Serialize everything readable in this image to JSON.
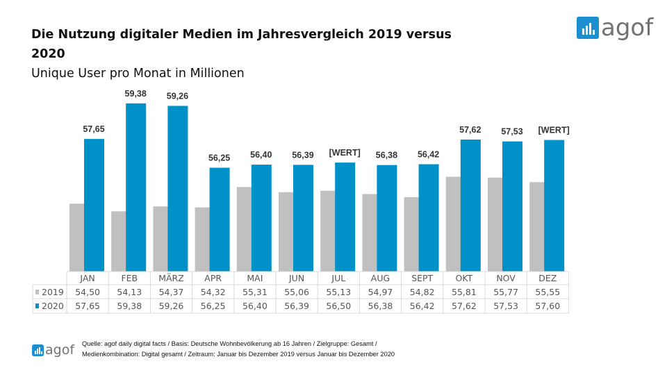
{
  "title": {
    "line1": "Die Nutzung digitaler Medien im Jahresvergleich 2019 versus 2020",
    "line2": "Unique User pro Monat in Millionen"
  },
  "logo": {
    "text": "agof",
    "color": "#1b8fd0"
  },
  "source": {
    "line1": "Quelle: agof daily digital facts / Basis: Deutsche Wohnbevölkerung ab 16 Jahren / Zielgruppe: Gesamt /",
    "line2": "Medienkombination: Digital gesamt / Zeitraum: Januar bis Dezember 2019 versus Januar bis Dezember 2020"
  },
  "chart_data": {
    "type": "bar",
    "categories": [
      "JAN",
      "FEB",
      "MÄRZ",
      "APR",
      "MAI",
      "JUN",
      "JUL",
      "AUG",
      "SEPT",
      "OKT",
      "NOV",
      "DEZ"
    ],
    "series": [
      {
        "name": "2019",
        "color": "#c0c0c0",
        "values": [
          54.5,
          54.13,
          54.37,
          54.32,
          55.31,
          55.06,
          55.13,
          54.97,
          54.82,
          55.81,
          55.77,
          55.55
        ],
        "table": [
          "54,50",
          "54,13",
          "54,37",
          "54,32",
          "55,31",
          "55,06",
          "55,13",
          "54,97",
          "54,82",
          "55,81",
          "55,77",
          "55,55"
        ]
      },
      {
        "name": "2020",
        "color": "#0091c8",
        "values": [
          57.65,
          59.38,
          59.26,
          56.25,
          56.4,
          56.39,
          56.5,
          56.38,
          56.42,
          57.62,
          57.53,
          57.6
        ],
        "table": [
          "57,65",
          "59,38",
          "59,26",
          "56,25",
          "56,40",
          "56,39",
          "56,50",
          "56,38",
          "56,42",
          "57,62",
          "57,53",
          "57,60"
        ],
        "data_labels": [
          "57,65",
          "59,38",
          "59,26",
          "56,25",
          "56,40",
          "56,39",
          "[WERT]",
          "56,38",
          "56,42",
          "57,62",
          "57,53",
          "[WERT]"
        ]
      }
    ],
    "ylim": [
      51.2,
      59.4
    ],
    "grid": false,
    "data_table": true
  }
}
